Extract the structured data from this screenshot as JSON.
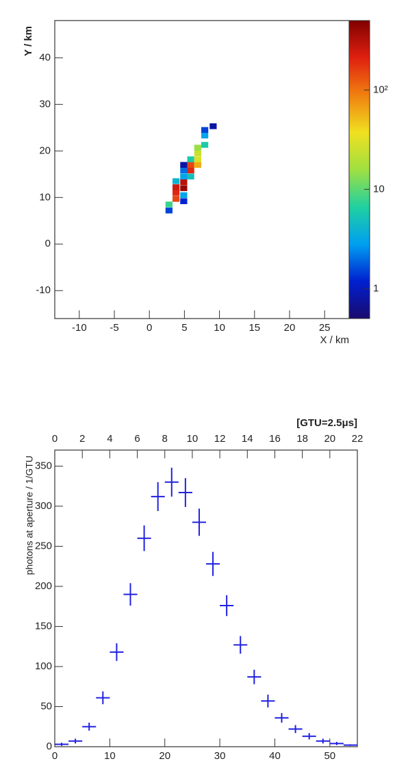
{
  "chart_data": [
    {
      "type": "heatmap",
      "x_label": "X / km",
      "y_label": "Y / km",
      "xlim": [
        -13.5,
        28.5
      ],
      "ylim": [
        -16,
        48
      ],
      "xticks": [
        -10,
        -5,
        0,
        5,
        10,
        15,
        20,
        25
      ],
      "yticks": [
        -10,
        0,
        10,
        20,
        30,
        40
      ],
      "x": [
        2.8,
        2.8,
        3.8,
        4.9,
        3.8,
        4.9,
        3.8,
        3.8,
        4.9,
        4.9,
        4.9,
        4.9,
        4.9,
        5.9,
        5.9,
        5.9,
        5.9,
        6.9,
        6.9,
        6.9,
        6.9,
        7.9,
        7.9,
        7.9,
        9.1
      ],
      "y": [
        7.2,
        8.5,
        9.7,
        9.2,
        11,
        10.5,
        12.2,
        13.5,
        12,
        13.3,
        14.5,
        15.8,
        17,
        14.5,
        15.8,
        17,
        18.2,
        17,
        18.2,
        19.5,
        20.7,
        21.3,
        23.3,
        24.5,
        25.3
      ],
      "values": [
        1.5,
        8,
        150,
        1.2,
        200,
        3,
        250,
        4,
        400,
        300,
        3,
        2,
        0.8,
        5,
        200,
        150,
        6,
        60,
        30,
        25,
        15,
        6,
        3,
        1.5,
        0.8
      ],
      "color_scale": "log",
      "clim": [
        0.5,
        500
      ],
      "cticks": [
        1,
        10,
        {
          "value": 100,
          "label": "10²"
        }
      ],
      "colormap": [
        "#1a0a6e",
        "#0020d0",
        "#00a0f0",
        "#20d0a0",
        "#a0e040",
        "#f0e020",
        "#f08010",
        "#e02010",
        "#800000"
      ]
    },
    {
      "type": "histogram",
      "y_label": "photons at aperture / 1/GTU",
      "x2_label": "[GTU=2.5μs]",
      "xlim": [
        0,
        55
      ],
      "ylim": [
        0,
        370
      ],
      "xticks": [
        0,
        10,
        20,
        30,
        40,
        50
      ],
      "yticks": [
        0,
        50,
        100,
        150,
        200,
        250,
        300,
        350
      ],
      "x2lim": [
        0,
        22
      ],
      "x2ticks": [
        0,
        2,
        4,
        6,
        8,
        10,
        12,
        14,
        16,
        18,
        20,
        22
      ],
      "bins": [
        0,
        2.5,
        5,
        7.5,
        10,
        12.5,
        15,
        17.5,
        20,
        22.5,
        25,
        27.5,
        30,
        32.5,
        35,
        37.5,
        40,
        42.5,
        45,
        47.5,
        50,
        52.5,
        55
      ],
      "values": [
        3,
        7,
        25,
        61,
        118,
        190,
        260,
        312,
        330,
        317,
        280,
        228,
        176,
        127,
        87,
        57,
        36,
        22,
        13,
        7,
        4,
        2
      ],
      "errors": [
        2,
        3,
        5,
        8,
        11,
        14,
        16,
        18,
        18,
        18,
        17,
        15,
        13,
        11,
        9,
        8,
        6,
        5,
        4,
        3,
        2,
        1
      ],
      "color": "#2020e0"
    }
  ]
}
